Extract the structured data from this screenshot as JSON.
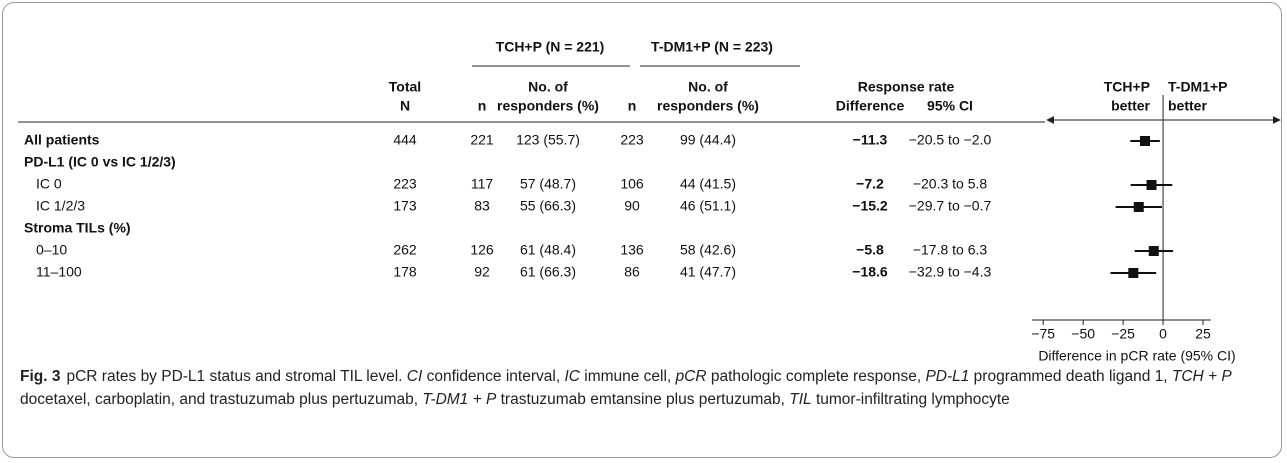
{
  "table": {
    "group_headers": [
      "TCH+P (N = 221)",
      "T-DM1+P (N = 223)"
    ],
    "headers": {
      "total": [
        "Total",
        "N"
      ],
      "n1": "n",
      "resp1": [
        "No. of",
        "responders (%)"
      ],
      "n2": "n",
      "resp2": [
        "No. of",
        "responders (%)"
      ],
      "rr": "Response rate",
      "diff": "Difference",
      "ci": "95% CI"
    },
    "rows": [
      {
        "label": "All patients",
        "bold": true,
        "total": 444,
        "n1": 221,
        "resp1": "123 (55.7)",
        "n2": 223,
        "resp2": "99 (44.4)",
        "difference": {
          "value": -11.3,
          "label": "−11.3"
        },
        "ci": {
          "low": -20.5,
          "high": -2.0,
          "label": "−20.5 to −2.0"
        }
      },
      {
        "label": "PD-L1 (IC 0 vs IC 1/2/3)",
        "bold": true
      },
      {
        "label": "IC 0",
        "total": 223,
        "n1": 117,
        "resp1": "57 (48.7)",
        "n2": 106,
        "resp2": "44 (41.5)",
        "difference": {
          "value": -7.2,
          "label": "−7.2"
        },
        "ci": {
          "low": -20.3,
          "high": 5.8,
          "label": "−20.3 to 5.8"
        }
      },
      {
        "label": "IC 1/2/3",
        "total": 173,
        "n1": 83,
        "resp1": "55 (66.3)",
        "n2": 90,
        "resp2": "46 (51.1)",
        "difference": {
          "value": -15.2,
          "label": "−15.2"
        },
        "ci": {
          "low": -29.7,
          "high": -0.7,
          "label": "−29.7 to −0.7"
        }
      },
      {
        "label": "Stroma TILs (%)",
        "bold": true
      },
      {
        "label": "0–10",
        "total": 262,
        "n1": 126,
        "resp1": "61 (48.4)",
        "n2": 136,
        "resp2": "58 (42.6)",
        "difference": {
          "value": -5.8,
          "label": "−5.8"
        },
        "ci": {
          "low": -17.8,
          "high": 6.3,
          "label": "−17.8 to 6.3"
        }
      },
      {
        "label": "11–100",
        "total": 178,
        "n1": 92,
        "resp1": "61 (66.3)",
        "n2": 86,
        "resp2": "41 (47.7)",
        "difference": {
          "value": -18.6,
          "label": "−18.6"
        },
        "ci": {
          "low": -32.9,
          "high": -4.3,
          "label": "−32.9 to −4.3"
        }
      }
    ]
  },
  "forest": {
    "left_label": [
      "TCH+P",
      "better"
    ],
    "right_label": [
      "T-DM1+P",
      "better"
    ],
    "xlim": [
      -82,
      30
    ],
    "xticks": [
      {
        "value": -75,
        "label": "−75"
      },
      {
        "value": -50,
        "label": "−50"
      },
      {
        "value": -25,
        "label": "−25"
      },
      0,
      25
    ],
    "xlabel": "Difference in pCR rate (95% CI)"
  },
  "caption": {
    "label": "Fig. 3",
    "parts": [
      {
        "text": "pCR rates by PD-L1 status and stromal TIL level. "
      },
      {
        "text": "CI",
        "italic": true
      },
      {
        "text": " confidence interval, "
      },
      {
        "text": "IC",
        "italic": true
      },
      {
        "text": " immune cell, "
      },
      {
        "text": "pCR",
        "italic": true
      },
      {
        "text": " pathologic complete response, "
      },
      {
        "text": "PD-L1",
        "italic": true
      },
      {
        "text": " programmed death ligand 1, "
      },
      {
        "text": "TCH + P",
        "italic": true
      },
      {
        "text": " docetaxel, carboplatin, and trastuzumab plus pertuzumab, "
      },
      {
        "text": "T-DM1 + P",
        "italic": true
      },
      {
        "text": " trastuzumab emtansine plus pertuzumab, "
      },
      {
        "text": "TIL",
        "italic": true
      },
      {
        "text": " tumor-infiltrating lymphocyte"
      }
    ]
  }
}
